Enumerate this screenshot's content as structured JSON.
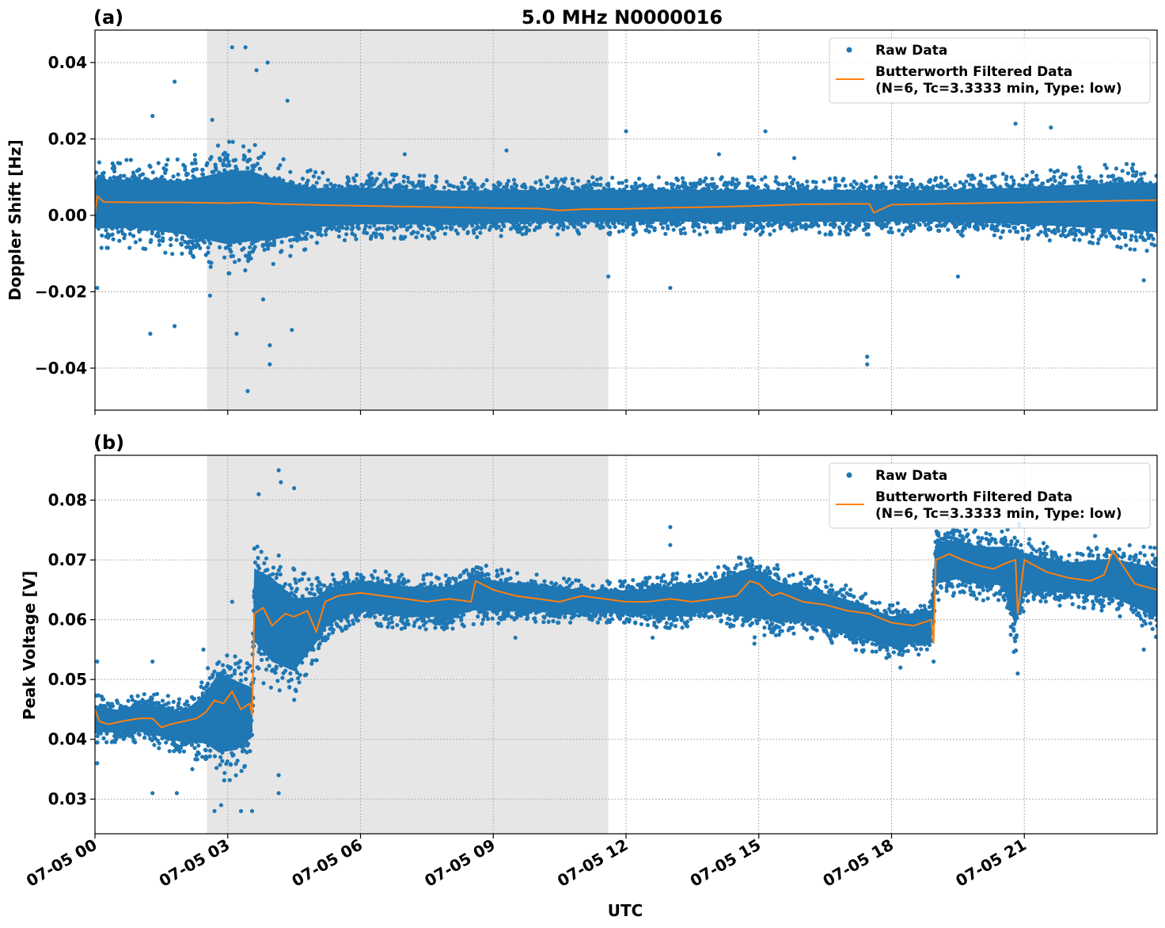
{
  "figure": {
    "title": "5.0 MHz N0000016",
    "xlabel": "UTC"
  },
  "chart_data": [
    {
      "panel_label": "(a)",
      "type": "scatter",
      "ylabel": "Doppler Shift [Hz]",
      "ylim": [
        -0.051,
        0.0485
      ],
      "yticks": [
        -0.04,
        -0.02,
        0.0,
        0.02,
        0.04
      ],
      "ytick_labels": [
        "−0.04",
        "−0.02",
        "0.00",
        "0.02",
        "0.04"
      ],
      "xlim_hours": [
        0,
        24
      ],
      "x_unit": "hours UTC on 07-05",
      "shaded_interval_hours": [
        2.53,
        11.6
      ],
      "grid": true,
      "legend_position": "top-right",
      "colors": {
        "raw": "#1f77b4",
        "filtered": "#ff7f0e",
        "shade": "#e6e6e6"
      },
      "series": [
        {
          "name": "Raw Data",
          "kind": "points",
          "color": "#1f77b4",
          "envelope": {
            "x": [
              0,
              1,
              2,
              2.5,
              3,
              3.5,
              4,
              4.5,
              5,
              6,
              8,
              10,
              11.6,
              12,
              14,
              16,
              17.5,
              19,
              21,
              22,
              23,
              24
            ],
            "upper": [
              0.013,
              0.013,
              0.013,
              0.015,
              0.017,
              0.017,
              0.014,
              0.012,
              0.01,
              0.01,
              0.009,
              0.009,
              0.009,
              0.009,
              0.009,
              0.009,
              0.009,
              0.009,
              0.01,
              0.011,
              0.012,
              0.012
            ],
            "lower": [
              -0.007,
              -0.007,
              -0.009,
              -0.011,
              -0.013,
              -0.012,
              -0.011,
              -0.009,
              -0.006,
              -0.005,
              -0.005,
              -0.004,
              -0.004,
              -0.004,
              -0.004,
              -0.004,
              -0.004,
              -0.004,
              -0.005,
              -0.006,
              -0.007,
              -0.008
            ]
          },
          "outliers": [
            [
              1.3,
              0.026
            ],
            [
              1.25,
              -0.031
            ],
            [
              1.8,
              0.035
            ],
            [
              1.8,
              -0.029
            ],
            [
              2.65,
              0.025
            ],
            [
              3.1,
              0.044
            ],
            [
              3.4,
              0.044
            ],
            [
              3.2,
              -0.031
            ],
            [
              3.45,
              -0.046
            ],
            [
              3.65,
              0.038
            ],
            [
              3.9,
              0.04
            ],
            [
              3.95,
              -0.034
            ],
            [
              3.95,
              -0.039
            ],
            [
              4.45,
              -0.03
            ],
            [
              4.35,
              0.03
            ],
            [
              3.8,
              -0.022
            ],
            [
              2.6,
              -0.021
            ],
            [
              0.05,
              -0.019
            ],
            [
              12.0,
              0.022
            ],
            [
              13.0,
              -0.019
            ],
            [
              14.1,
              0.016
            ],
            [
              15.15,
              0.022
            ],
            [
              17.45,
              -0.037
            ],
            [
              17.45,
              -0.039
            ],
            [
              20.8,
              0.024
            ],
            [
              21.6,
              0.023
            ],
            [
              23.7,
              -0.017
            ],
            [
              9.3,
              0.017
            ],
            [
              11.6,
              -0.016
            ],
            [
              7.0,
              0.016
            ],
            [
              15.8,
              0.015
            ],
            [
              19.5,
              -0.016
            ]
          ]
        },
        {
          "name": "Butterworth Filtered Data\n(N=6, Tc=3.3333 min, Type: low)",
          "kind": "line",
          "color": "#ff7f0e",
          "x": [
            0,
            0.05,
            0.2,
            1,
            2,
            3,
            3.5,
            4,
            5,
            6,
            7,
            8,
            9,
            10,
            10.5,
            11,
            12,
            13,
            14,
            15,
            16,
            17,
            17.5,
            17.6,
            18,
            19,
            20,
            21,
            22,
            23,
            24
          ],
          "y": [
            0.0005,
            0.005,
            0.0035,
            0.0034,
            0.0034,
            0.0032,
            0.0034,
            0.003,
            0.0027,
            0.0025,
            0.0023,
            0.0021,
            0.0019,
            0.0018,
            0.0013,
            0.0016,
            0.0017,
            0.002,
            0.0022,
            0.0025,
            0.0029,
            0.003,
            0.003,
            0.0007,
            0.0028,
            0.003,
            0.0032,
            0.0034,
            0.0036,
            0.0038,
            0.004
          ]
        }
      ]
    },
    {
      "panel_label": "(b)",
      "type": "scatter",
      "ylabel": "Peak Voltage [V]",
      "ylim": [
        0.0242,
        0.0875
      ],
      "yticks": [
        0.03,
        0.04,
        0.05,
        0.06,
        0.07,
        0.08
      ],
      "ytick_labels": [
        "0.03",
        "0.04",
        "0.05",
        "0.06",
        "0.07",
        "0.08"
      ],
      "xlim_hours": [
        0,
        24
      ],
      "x_unit": "hours UTC on 07-05",
      "xticks_hours": [
        0,
        3,
        6,
        9,
        12,
        15,
        18,
        21
      ],
      "xtick_labels": [
        "07-05 00",
        "07-05 03",
        "07-05 06",
        "07-05 09",
        "07-05 12",
        "07-05 15",
        "07-05 18",
        "07-05 21"
      ],
      "shaded_interval_hours": [
        2.53,
        11.6
      ],
      "grid": true,
      "legend_position": "top-right",
      "colors": {
        "raw": "#1f77b4",
        "filtered": "#ff7f0e",
        "shade": "#e6e6e6"
      },
      "series": [
        {
          "name": "Raw Data",
          "kind": "points",
          "color": "#1f77b4",
          "envelope": {
            "x": [
              0,
              0.5,
              1,
              1.5,
              2,
              2.5,
              2.8,
              3.2,
              3.55,
              3.6,
              4,
              4.5,
              5,
              5.3,
              6,
              7,
              8,
              8.6,
              9,
              10,
              11,
              12,
              13,
              14,
              14.8,
              15.5,
              16,
              17,
              18,
              18.9,
              19.0,
              19.5,
              20,
              20.5,
              20.8,
              21,
              22,
              23,
              24
            ],
            "upper": [
              0.047,
              0.046,
              0.047,
              0.047,
              0.046,
              0.05,
              0.055,
              0.053,
              0.051,
              0.072,
              0.071,
              0.067,
              0.066,
              0.067,
              0.068,
              0.067,
              0.067,
              0.069,
              0.068,
              0.067,
              0.066,
              0.066,
              0.067,
              0.068,
              0.071,
              0.068,
              0.067,
              0.065,
              0.062,
              0.063,
              0.075,
              0.075,
              0.074,
              0.074,
              0.076,
              0.073,
              0.071,
              0.072,
              0.071
            ],
            "lower": [
              0.04,
              0.04,
              0.04,
              0.039,
              0.038,
              0.037,
              0.034,
              0.035,
              0.038,
              0.053,
              0.049,
              0.048,
              0.054,
              0.058,
              0.06,
              0.059,
              0.059,
              0.06,
              0.06,
              0.06,
              0.06,
              0.06,
              0.059,
              0.06,
              0.058,
              0.058,
              0.058,
              0.056,
              0.054,
              0.055,
              0.064,
              0.065,
              0.064,
              0.064,
              0.055,
              0.063,
              0.063,
              0.062,
              0.058
            ]
          },
          "outliers": [
            [
              0.05,
              0.053
            ],
            [
              0.05,
              0.036
            ],
            [
              1.3,
              0.053
            ],
            [
              1.3,
              0.031
            ],
            [
              1.85,
              0.031
            ],
            [
              2.2,
              0.035
            ],
            [
              2.45,
              0.055
            ],
            [
              2.7,
              0.028
            ],
            [
              2.85,
              0.029
            ],
            [
              3.1,
              0.063
            ],
            [
              3.3,
              0.028
            ],
            [
              3.7,
              0.081
            ],
            [
              4.15,
              0.085
            ],
            [
              4.2,
              0.083
            ],
            [
              4.5,
              0.082
            ],
            [
              4.15,
              0.031
            ],
            [
              4.15,
              0.034
            ],
            [
              3.55,
              0.028
            ],
            [
              13.0,
              0.0755
            ],
            [
              13.0,
              0.0725
            ],
            [
              14.9,
              0.056
            ],
            [
              16.2,
              0.057
            ],
            [
              18.2,
              0.052
            ],
            [
              18.95,
              0.053
            ],
            [
              20.85,
              0.051
            ],
            [
              20.6,
              0.078
            ],
            [
              19.3,
              0.077
            ],
            [
              23.7,
              0.055
            ],
            [
              12.6,
              0.057
            ],
            [
              9.5,
              0.057
            ],
            [
              22.6,
              0.074
            ]
          ]
        },
        {
          "name": "Butterworth Filtered Data\n(N=6, Tc=3.3333 min, Type: low)",
          "kind": "line",
          "color": "#ff7f0e",
          "x": [
            0,
            0.1,
            0.3,
            0.6,
            1.0,
            1.3,
            1.5,
            1.7,
            2.0,
            2.3,
            2.5,
            2.7,
            2.9,
            3.1,
            3.3,
            3.5,
            3.55,
            3.6,
            3.8,
            4.0,
            4.3,
            4.5,
            4.8,
            5.0,
            5.2,
            5.5,
            6.0,
            6.5,
            7.0,
            7.5,
            8.0,
            8.5,
            8.6,
            9.0,
            9.5,
            10.0,
            10.5,
            11.0,
            11.5,
            12.0,
            12.5,
            13.0,
            13.5,
            14.0,
            14.5,
            14.8,
            15.0,
            15.3,
            15.5,
            16.0,
            16.5,
            17.0,
            17.5,
            18.0,
            18.5,
            18.9,
            18.95,
            19.0,
            19.3,
            19.6,
            20.0,
            20.3,
            20.6,
            20.8,
            20.85,
            21.0,
            21.5,
            22.0,
            22.5,
            22.8,
            23.0,
            23.5,
            24.0
          ],
          "y": [
            0.045,
            0.043,
            0.0425,
            0.043,
            0.0435,
            0.0435,
            0.042,
            0.0425,
            0.043,
            0.0435,
            0.0445,
            0.0465,
            0.046,
            0.048,
            0.045,
            0.046,
            0.044,
            0.061,
            0.062,
            0.059,
            0.061,
            0.0605,
            0.0615,
            0.058,
            0.063,
            0.064,
            0.0645,
            0.064,
            0.0635,
            0.063,
            0.0635,
            0.063,
            0.0665,
            0.065,
            0.064,
            0.0635,
            0.063,
            0.064,
            0.0635,
            0.063,
            0.063,
            0.0635,
            0.063,
            0.0635,
            0.064,
            0.0665,
            0.066,
            0.064,
            0.0645,
            0.063,
            0.0625,
            0.0615,
            0.061,
            0.0595,
            0.059,
            0.06,
            0.056,
            0.07,
            0.071,
            0.07,
            0.069,
            0.0685,
            0.0695,
            0.07,
            0.061,
            0.07,
            0.068,
            0.067,
            0.0665,
            0.0675,
            0.0715,
            0.066,
            0.065
          ]
        }
      ]
    }
  ]
}
